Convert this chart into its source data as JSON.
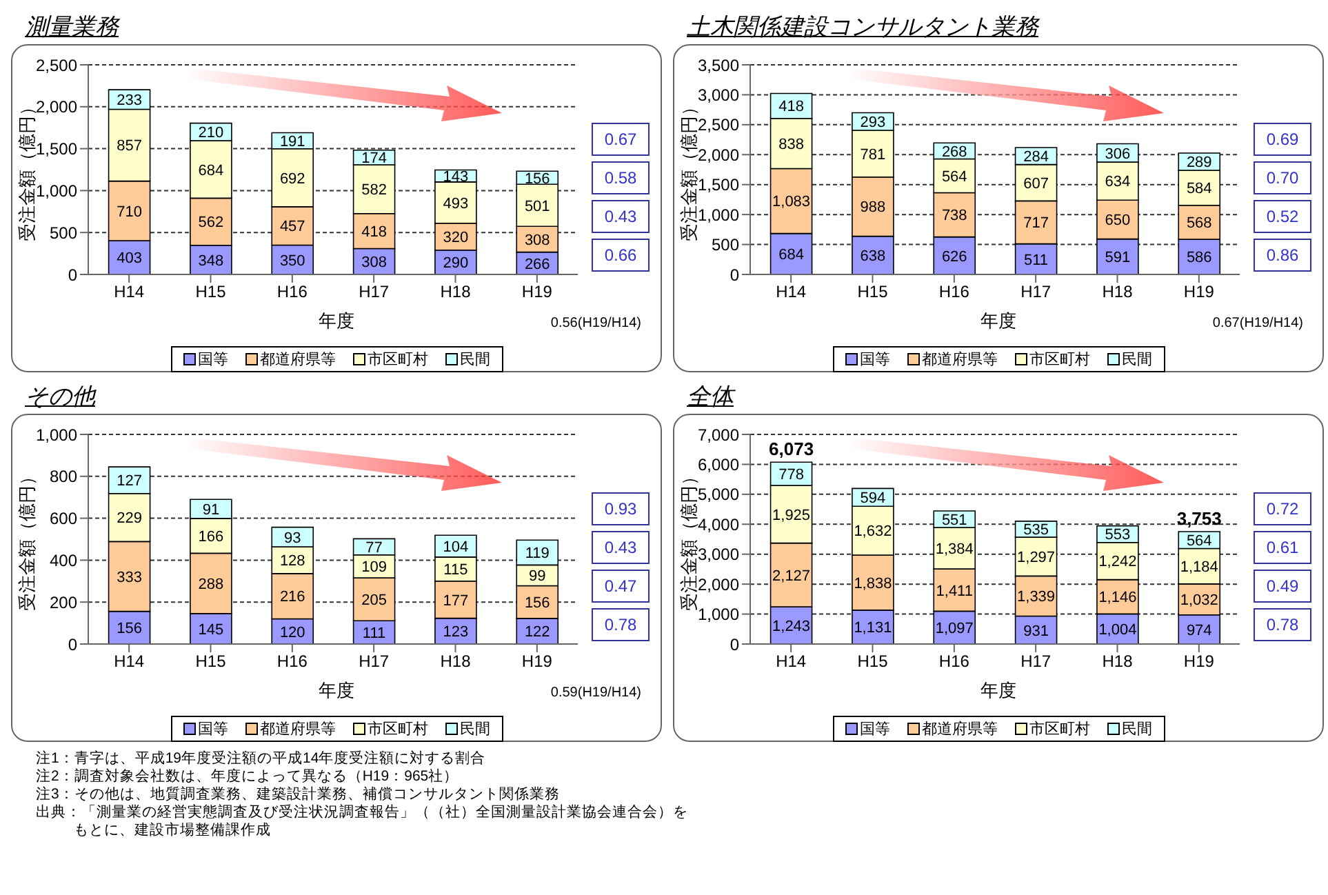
{
  "chart_data": [
    {
      "type": "bar",
      "title": "測量業務",
      "xlabel": "年度",
      "ylabel": "受注金額（億円）",
      "categories": [
        "H14",
        "H15",
        "H16",
        "H17",
        "H18",
        "H19"
      ],
      "stacked": true,
      "data_labels": true,
      "grid": "y",
      "legend": "bottom",
      "ylim": [
        0,
        2500
      ],
      "yticks": [
        0,
        500,
        {
          "value": 1000,
          "label": "1,000"
        },
        {
          "value": 1500,
          "label": "1,500"
        },
        {
          "value": 2000,
          "label": "2,000"
        },
        {
          "value": 2500,
          "label": "2,500"
        }
      ],
      "series": [
        {
          "name": "国等",
          "color": "#9999ff",
          "values": [
            403,
            348,
            350,
            308,
            290,
            266
          ]
        },
        {
          "name": "都道府県等",
          "color": "#ffcc99",
          "values": [
            710,
            562,
            457,
            418,
            320,
            308
          ]
        },
        {
          "name": "市区町村",
          "color": "#ffffcc",
          "values": [
            857,
            684,
            692,
            582,
            493,
            501
          ]
        },
        {
          "name": "民間",
          "color": "#ccffff",
          "values": [
            233,
            210,
            191,
            174,
            143,
            156
          ]
        }
      ],
      "annotations": [
        "0.67",
        "0.58",
        "0.43",
        "0.66",
        "0.56(H19/H14)"
      ]
    },
    {
      "type": "bar",
      "title": "土木関係建設コンサルタント業務",
      "xlabel": "年度",
      "ylabel": "受注金額（億円）",
      "categories": [
        "H14",
        "H15",
        "H16",
        "H17",
        "H18",
        "H19"
      ],
      "stacked": true,
      "data_labels": true,
      "grid": "y",
      "legend": "bottom",
      "ylim": [
        0,
        3500
      ],
      "yticks": [
        0,
        500,
        {
          "value": 1000,
          "label": "1,000"
        },
        {
          "value": 1500,
          "label": "1,500"
        },
        {
          "value": 2000,
          "label": "2,000"
        },
        {
          "value": 2500,
          "label": "2,500"
        },
        {
          "value": 3000,
          "label": "3,000"
        },
        {
          "value": 3500,
          "label": "3,500"
        }
      ],
      "series": [
        {
          "name": "国等",
          "color": "#9999ff",
          "values": [
            684,
            638,
            626,
            511,
            591,
            586
          ]
        },
        {
          "name": "都道府県等",
          "color": "#ffcc99",
          "values": [
            1083,
            988,
            738,
            717,
            650,
            568
          ],
          "value_labels": [
            "1,083",
            "988",
            "738",
            "717",
            "650",
            "568"
          ]
        },
        {
          "name": "市区町村",
          "color": "#ffffcc",
          "values": [
            838,
            781,
            564,
            607,
            634,
            584
          ]
        },
        {
          "name": "民間",
          "color": "#ccffff",
          "values": [
            418,
            293,
            268,
            284,
            306,
            289
          ]
        }
      ],
      "annotations": [
        "0.69",
        "0.70",
        "0.52",
        "0.86",
        "0.67(H19/H14)"
      ]
    },
    {
      "type": "bar",
      "title": "その他",
      "xlabel": "年度",
      "ylabel": "受注金額（億円）",
      "categories": [
        "H14",
        "H15",
        "H16",
        "H17",
        "H18",
        "H19"
      ],
      "stacked": true,
      "data_labels": true,
      "grid": "y",
      "legend": "bottom",
      "ylim": [
        0,
        1000
      ],
      "yticks": [
        0,
        200,
        400,
        600,
        800,
        {
          "value": 1000,
          "label": "1,000"
        }
      ],
      "series": [
        {
          "name": "国等",
          "color": "#9999ff",
          "values": [
            156,
            145,
            120,
            111,
            123,
            122
          ]
        },
        {
          "name": "都道府県等",
          "color": "#ffcc99",
          "values": [
            333,
            288,
            216,
            205,
            177,
            156
          ]
        },
        {
          "name": "市区町村",
          "color": "#ffffcc",
          "values": [
            229,
            166,
            128,
            109,
            115,
            99
          ]
        },
        {
          "name": "民間",
          "color": "#ccffff",
          "values": [
            127,
            91,
            93,
            77,
            104,
            119
          ]
        }
      ],
      "annotations": [
        "0.93",
        "0.43",
        "0.47",
        "0.78",
        "0.59(H19/H14)"
      ]
    },
    {
      "type": "bar",
      "title": "全体",
      "xlabel": "年度",
      "ylabel": "受注金額（億円）",
      "categories": [
        "H14",
        "H15",
        "H16",
        "H17",
        "H18",
        "H19"
      ],
      "stacked": true,
      "data_labels": true,
      "grid": "y",
      "legend": "bottom",
      "ylim": [
        0,
        7000
      ],
      "yticks": [
        0,
        {
          "value": 1000,
          "label": "1,000"
        },
        {
          "value": 2000,
          "label": "2,000"
        },
        {
          "value": 3000,
          "label": "3,000"
        },
        {
          "value": 4000,
          "label": "4,000"
        },
        {
          "value": 5000,
          "label": "5,000"
        },
        {
          "value": 6000,
          "label": "6,000"
        },
        {
          "value": 7000,
          "label": "7,000"
        }
      ],
      "series": [
        {
          "name": "国等",
          "color": "#9999ff",
          "values": [
            1243,
            1131,
            1097,
            931,
            1004,
            974
          ],
          "value_labels": [
            "1,243",
            "1,131",
            "1,097",
            "931",
            "1,004",
            "974"
          ]
        },
        {
          "name": "都道府県等",
          "color": "#ffcc99",
          "values": [
            2127,
            1838,
            1411,
            1339,
            1146,
            1032
          ],
          "value_labels": [
            "2,127",
            "1,838",
            "1,411",
            "1,339",
            "1,146",
            "1,032"
          ]
        },
        {
          "name": "市区町村",
          "color": "#ffffcc",
          "values": [
            1925,
            1632,
            1384,
            1297,
            1242,
            1184
          ],
          "value_labels": [
            "1,925",
            "1,632",
            "1,384",
            "1,297",
            "1,242",
            "1,184"
          ]
        },
        {
          "name": "民間",
          "color": "#ccffff",
          "values": [
            778,
            594,
            551,
            535,
            553,
            564
          ]
        }
      ],
      "totals": [
        "6,073",
        null,
        null,
        null,
        null,
        "3,753"
      ],
      "annotations": [
        "0.72",
        "0.61",
        "0.49",
        "0.78"
      ]
    },
    {
      "type": "other",
      "annotations": [
        "注1：青字は、平成19年度受注額の平成14年度受注額に対する割合",
        "注2：調査対象会社数は、年度によって異なる（H19：965社）",
        "注3：その他は、地質調査業務、建築設計業務、補償コンサルタント関係業務",
        "出典：「測量業の経営実態調査及び受注状況調査報告」（（社）全国測量設計業協会連合会）をもとに、建設市場整備課作成"
      ]
    }
  ]
}
